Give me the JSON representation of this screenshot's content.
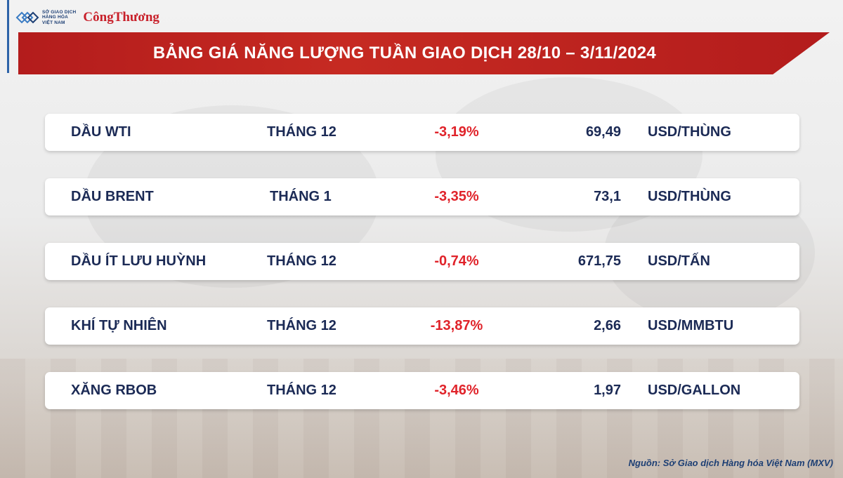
{
  "header": {
    "org_logo_lines": [
      "SỞ GIAO DỊCH",
      "HÀNG HÓA",
      "VIỆT NAM"
    ],
    "brand": "CôngThương",
    "title": "BẢNG GIÁ NĂNG LƯỢNG TUẦN GIAO DỊCH 28/10 – 3/11/2024"
  },
  "rows": [
    {
      "name": "DẦU WTI",
      "month": "THÁNG 12",
      "change": "-3,19%",
      "price": "69,49",
      "unit": "USD/THÙNG"
    },
    {
      "name": "DẦU BRENT",
      "month": "THÁNG 1",
      "change": "-3,35%",
      "price": "73,1",
      "unit": "USD/THÙNG"
    },
    {
      "name": "DẦU ÍT LƯU HUỲNH",
      "month": "THÁNG 12",
      "change": "-0,74%",
      "price": "671,75",
      "unit": "USD/TẤN"
    },
    {
      "name": "KHÍ TỰ NHIÊN",
      "month": "THÁNG 12",
      "change": "-13,87%",
      "price": "2,66",
      "unit": "USD/MMBTU"
    },
    {
      "name": "XĂNG RBOB",
      "month": "THÁNG 12",
      "change": "-3,46%",
      "price": "1,97",
      "unit": "USD/GALLON"
    }
  ],
  "footer": {
    "source": "Nguồn: Sở Giao dịch Hàng hóa Việt Nam (MXV)"
  },
  "colors": {
    "title_bar": "#b31c1c",
    "text_navy": "#1b2a55",
    "negative_red": "#e0232a"
  }
}
